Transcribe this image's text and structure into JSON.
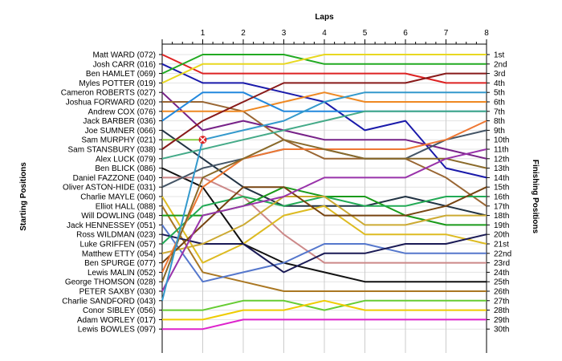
{
  "chart_data": {
    "type": "line",
    "title": "Laps",
    "xlabel": "Laps",
    "ylabel_left": "Starting Positions",
    "ylabel_right": "Finishing Positions",
    "x": [
      0,
      1,
      2,
      3,
      4,
      5,
      6,
      7,
      8
    ],
    "x_tick_labels": [
      "1",
      "2",
      "3",
      "4",
      "5",
      "6",
      "7",
      "8"
    ],
    "ylim": [
      1,
      30
    ],
    "grid": true,
    "finishing_labels": [
      "1st",
      "2nd",
      "3rd",
      "4th",
      "5th",
      "6th",
      "7th",
      "8th",
      "9th",
      "10th",
      "11th",
      "12th",
      "13th",
      "14th",
      "15th",
      "16th",
      "17th",
      "18th",
      "19th",
      "20th",
      "21st",
      "22nd",
      "23rd",
      "24th",
      "25th",
      "26th",
      "27th",
      "28th",
      "29th",
      "30th"
    ],
    "marker": {
      "series": "Sam MURPHY (021)",
      "lap": 1,
      "position": 10,
      "label": "retired"
    },
    "series": [
      {
        "name": "Matt WARD (072)",
        "color": "#dd2222",
        "positions": [
          1,
          3,
          3,
          3,
          3,
          3,
          3,
          4,
          4
        ]
      },
      {
        "name": "Josh CARR (016)",
        "color": "#1a1aaa",
        "positions": [
          2,
          4,
          4,
          5,
          6,
          9,
          8,
          13,
          14
        ]
      },
      {
        "name": "Ben HAMLET (069)",
        "color": "#22aa22",
        "positions": [
          3,
          1,
          1,
          1,
          2,
          2,
          2,
          2,
          2
        ]
      },
      {
        "name": "Myles POTTER (019)",
        "color": "#e8d820",
        "positions": [
          4,
          2,
          2,
          2,
          1,
          1,
          1,
          1,
          1
        ]
      },
      {
        "name": "Cameron ROBERTS (027)",
        "color": "#772288",
        "positions": [
          5,
          9,
          8,
          9,
          10,
          10,
          10,
          11,
          12
        ]
      },
      {
        "name": "Joshua FORWARD (020)",
        "color": "#996633",
        "positions": [
          6,
          6,
          7,
          10,
          12,
          12,
          12,
          14,
          17
        ]
      },
      {
        "name": "Andrew COX (076)",
        "color": "#ee8822",
        "positions": [
          7,
          7,
          7,
          6,
          5,
          6,
          6,
          6,
          6
        ]
      },
      {
        "name": "Jack BARBER (036)",
        "color": "#2288dd",
        "positions": [
          8,
          5,
          5,
          7,
          7,
          7,
          7,
          7,
          7
        ]
      },
      {
        "name": "Joe SUMNER (066)",
        "color": "#223344",
        "positions": [
          9,
          12,
          15,
          17,
          17,
          17,
          16,
          17,
          18
        ]
      },
      {
        "name": "Sam MURPHY (021)",
        "color": "#88cc44",
        "positions": [
          10,
          10,
          null,
          null,
          null,
          null,
          null,
          null,
          null
        ]
      },
      {
        "name": "Sam STANSBURY (038)",
        "color": "#881a1a",
        "positions": [
          11,
          8,
          6,
          4,
          4,
          4,
          4,
          3,
          3
        ]
      },
      {
        "name": "Alex LUCK (079)",
        "color": "#44aa88",
        "positions": [
          12,
          11,
          10,
          9,
          8,
          7,
          7,
          7,
          7
        ]
      },
      {
        "name": "Ben BLICK (086)",
        "color": "#111111",
        "positions": [
          13,
          15,
          21,
          23,
          24,
          25,
          25,
          25,
          25
        ]
      },
      {
        "name": "Daniel FAZZONE (040)",
        "color": "#cc8888",
        "positions": [
          14,
          14,
          16,
          20,
          23,
          23,
          23,
          23,
          23
        ]
      },
      {
        "name": "Oliver ASTON-HIDE (031)",
        "color": "#445566",
        "positions": [
          15,
          13,
          12,
          11,
          11,
          12,
          12,
          10,
          9
        ]
      },
      {
        "name": "Charlie MAYLE (060)",
        "color": "#ddbb22",
        "positions": [
          16,
          23,
          21,
          18,
          17,
          20,
          20,
          20,
          21
        ]
      },
      {
        "name": "Elliot HALL (088)",
        "color": "#aa7722",
        "positions": [
          17,
          24,
          25,
          26,
          26,
          26,
          26,
          26,
          26
        ]
      },
      {
        "name": "Will DOWLING (048)",
        "color": "#1a9a1a",
        "positions": [
          18,
          18,
          17,
          15,
          16,
          16,
          18,
          19,
          19
        ]
      },
      {
        "name": "Jack HENNESSEY (051)",
        "color": "#5577cc",
        "positions": [
          19,
          25,
          24,
          23,
          21,
          21,
          22,
          22,
          22
        ]
      },
      {
        "name": "Ross WILDMAN (023)",
        "color": "#1a1a55",
        "positions": [
          20,
          21,
          21,
          24,
          22,
          22,
          21,
          21,
          20
        ]
      },
      {
        "name": "Luke GRIFFEN (057)",
        "color": "#22aa55",
        "positions": [
          21,
          17,
          16,
          17,
          16,
          17,
          17,
          16,
          16
        ]
      },
      {
        "name": "Matthew ETTY (054)",
        "color": "#ccaa33",
        "positions": [
          22,
          21,
          19,
          16,
          16,
          19,
          19,
          18,
          18
        ]
      },
      {
        "name": "Ben SPURGE (077)",
        "color": "#774411",
        "positions": [
          23,
          19,
          15,
          15,
          18,
          18,
          18,
          17,
          15
        ]
      },
      {
        "name": "Lewis MALIN (052)",
        "color": "#ee7733",
        "positions": [
          24,
          15,
          12,
          11,
          11,
          11,
          11,
          10,
          8
        ]
      },
      {
        "name": "George THOMSON (028)",
        "color": "#8a6a2a",
        "positions": [
          25,
          14,
          12,
          10,
          11,
          12,
          12,
          12,
          13
        ]
      },
      {
        "name": "PETER SAXBY (030)",
        "color": "#9933aa",
        "positions": [
          26,
          18,
          17,
          16,
          14,
          14,
          14,
          12,
          11
        ]
      },
      {
        "name": "Charlie SANDFORD (043)",
        "color": "#3399cc",
        "positions": [
          27,
          10,
          9,
          8,
          6,
          5,
          5,
          5,
          5
        ]
      },
      {
        "name": "Conor SIBLEY (056)",
        "color": "#66cc33",
        "positions": [
          28,
          28,
          27,
          27,
          28,
          27,
          27,
          27,
          27
        ]
      },
      {
        "name": "Adam WORLEY (017)",
        "color": "#eecc00",
        "positions": [
          29,
          29,
          28,
          28,
          27,
          28,
          28,
          28,
          28
        ]
      },
      {
        "name": "Lewis BOWLES (097)",
        "color": "#dd22cc",
        "positions": [
          30,
          30,
          29,
          29,
          29,
          29,
          29,
          29,
          29
        ]
      }
    ]
  }
}
